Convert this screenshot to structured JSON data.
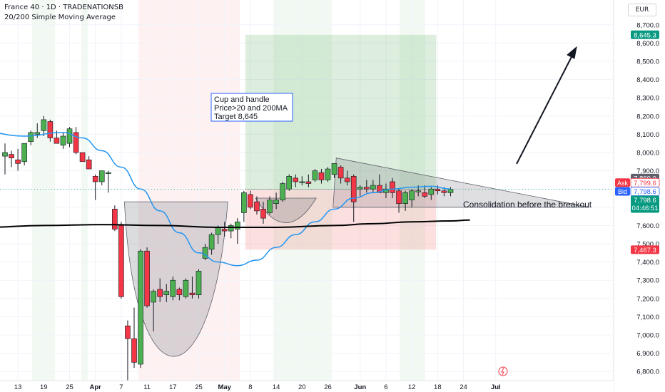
{
  "header": {
    "title": "France 40 · 1D · TRADENATIONSB",
    "indicator": "20/200 Simple Moving Average",
    "currency": "EUR"
  },
  "colors": {
    "up": "#4caf50",
    "down": "#f23645",
    "ma20": "#2196f3",
    "ma200": "#000000",
    "price_line": "#26a69a",
    "target_box": "#43a047",
    "stop_box": "#ef5350"
  },
  "chart_data": {
    "type": "candlestick",
    "y_axis": {
      "min": 6750,
      "max": 8750,
      "ticks": [
        6800,
        6900,
        7000,
        7100,
        7200,
        7300,
        7400,
        7500,
        7600,
        7700,
        7800,
        7900,
        8000,
        8100,
        8200,
        8300,
        8400,
        8500,
        8600,
        8700
      ],
      "tick_labels": [
        "6,800.0",
        "6,900.0",
        "7,000.0",
        "7,100.0",
        "7,200.0",
        "7,300.0",
        "7,400.0",
        "7,500.0",
        "7,600.0",
        "7,700.0",
        "7,800.0",
        "7,900.0",
        "8,000.0",
        "8,100.0",
        "8,200.0",
        "8,300.0",
        "8,400.0",
        "8,500.0",
        "8,600.0",
        "8,700.0"
      ]
    },
    "x_axis": {
      "labels": [
        {
          "idx": 2,
          "text": "13"
        },
        {
          "idx": 6,
          "text": "19"
        },
        {
          "idx": 10,
          "text": "25"
        },
        {
          "idx": 14,
          "text": "Apr"
        },
        {
          "idx": 18,
          "text": "7"
        },
        {
          "idx": 22,
          "text": "11"
        },
        {
          "idx": 26,
          "text": "17"
        },
        {
          "idx": 30,
          "text": "25"
        },
        {
          "idx": 34,
          "text": "May"
        },
        {
          "idx": 38,
          "text": "8"
        },
        {
          "idx": 42,
          "text": "14"
        },
        {
          "idx": 46,
          "text": "20"
        },
        {
          "idx": 50,
          "text": "26"
        },
        {
          "idx": 55,
          "text": "Jun"
        },
        {
          "idx": 59,
          "text": "6"
        },
        {
          "idx": 63,
          "text": "12"
        },
        {
          "idx": 67,
          "text": "18"
        },
        {
          "idx": 71,
          "text": "24"
        },
        {
          "idx": 76,
          "text": "Jul"
        }
      ]
    },
    "candles": [
      {
        "o": 7980,
        "h": 8050,
        "l": 7880,
        "c": 8000
      },
      {
        "o": 7990,
        "h": 8010,
        "l": 7920,
        "c": 7970
      },
      {
        "o": 7960,
        "h": 8020,
        "l": 7900,
        "c": 7940
      },
      {
        "o": 7950,
        "h": 8030,
        "l": 7930,
        "c": 8050
      },
      {
        "o": 8060,
        "h": 8120,
        "l": 8040,
        "c": 8110
      },
      {
        "o": 8100,
        "h": 8160,
        "l": 8080,
        "c": 8110
      },
      {
        "o": 8120,
        "h": 8200,
        "l": 8090,
        "c": 8180
      },
      {
        "o": 8170,
        "h": 8180,
        "l": 8060,
        "c": 8080
      },
      {
        "o": 8080,
        "h": 8120,
        "l": 8050,
        "c": 8050
      },
      {
        "o": 8040,
        "h": 8110,
        "l": 8020,
        "c": 8090
      },
      {
        "o": 8050,
        "h": 8140,
        "l": 8030,
        "c": 8130
      },
      {
        "o": 8110,
        "h": 8140,
        "l": 7990,
        "c": 8000
      },
      {
        "o": 8000,
        "h": 8000,
        "l": 7950,
        "c": 7950
      },
      {
        "o": 7960,
        "h": 7980,
        "l": 7910,
        "c": 7910
      },
      {
        "o": 7870,
        "h": 7880,
        "l": 7740,
        "c": 7840
      },
      {
        "o": 7840,
        "h": 7900,
        "l": 7820,
        "c": 7900
      },
      {
        "o": 7890,
        "h": 7900,
        "l": 7780,
        "c": 7890
      },
      {
        "o": 7690,
        "h": 7710,
        "l": 7570,
        "c": 7580
      },
      {
        "o": 7600,
        "h": 7620,
        "l": 7200,
        "c": 7210
      },
      {
        "o": 7050,
        "h": 7080,
        "l": 6750,
        "c": 6980
      },
      {
        "o": 6980,
        "h": 7150,
        "l": 6820,
        "c": 6850
      },
      {
        "o": 6840,
        "h": 7470,
        "l": 6820,
        "c": 7460
      },
      {
        "o": 7460,
        "h": 7480,
        "l": 7150,
        "c": 7160
      },
      {
        "o": 7180,
        "h": 7250,
        "l": 7020,
        "c": 7240
      },
      {
        "o": 7250,
        "h": 7310,
        "l": 7180,
        "c": 7210
      },
      {
        "o": 7220,
        "h": 7280,
        "l": 7180,
        "c": 7240
      },
      {
        "o": 7210,
        "h": 7320,
        "l": 7190,
        "c": 7300
      },
      {
        "o": 7250,
        "h": 7260,
        "l": 7190,
        "c": 7220
      },
      {
        "o": 7210,
        "h": 7310,
        "l": 7200,
        "c": 7300
      },
      {
        "o": 7230,
        "h": 7320,
        "l": 7200,
        "c": 7220
      },
      {
        "o": 7220,
        "h": 7360,
        "l": 7200,
        "c": 7350
      },
      {
        "o": 7420,
        "h": 7500,
        "l": 7410,
        "c": 7480
      },
      {
        "o": 7470,
        "h": 7560,
        "l": 7440,
        "c": 7550
      },
      {
        "o": 7550,
        "h": 7600,
        "l": 7500,
        "c": 7590
      },
      {
        "o": 7580,
        "h": 7620,
        "l": 7540,
        "c": 7570
      },
      {
        "o": 7570,
        "h": 7610,
        "l": 7530,
        "c": 7600
      },
      {
        "o": 7580,
        "h": 7640,
        "l": 7500,
        "c": 7620
      },
      {
        "o": 7670,
        "h": 7790,
        "l": 7620,
        "c": 7780
      },
      {
        "o": 7770,
        "h": 7790,
        "l": 7690,
        "c": 7700
      },
      {
        "o": 7730,
        "h": 7760,
        "l": 7660,
        "c": 7680
      },
      {
        "o": 7690,
        "h": 7730,
        "l": 7610,
        "c": 7640
      },
      {
        "o": 7670,
        "h": 7760,
        "l": 7660,
        "c": 7740
      },
      {
        "o": 7720,
        "h": 7780,
        "l": 7690,
        "c": 7740
      },
      {
        "o": 7740,
        "h": 7840,
        "l": 7730,
        "c": 7830
      },
      {
        "o": 7800,
        "h": 7880,
        "l": 7790,
        "c": 7870
      },
      {
        "o": 7860,
        "h": 7880,
        "l": 7810,
        "c": 7840
      },
      {
        "o": 7840,
        "h": 7870,
        "l": 7820,
        "c": 7840
      },
      {
        "o": 7840,
        "h": 7880,
        "l": 7810,
        "c": 7830
      },
      {
        "o": 7850,
        "h": 7910,
        "l": 7840,
        "c": 7900
      },
      {
        "o": 7890,
        "h": 7910,
        "l": 7830,
        "c": 7850
      },
      {
        "o": 7850,
        "h": 7920,
        "l": 7840,
        "c": 7910
      },
      {
        "o": 7880,
        "h": 7940,
        "l": 7860,
        "c": 7940
      },
      {
        "o": 7920,
        "h": 7930,
        "l": 7830,
        "c": 7860
      },
      {
        "o": 7860,
        "h": 7900,
        "l": 7820,
        "c": 7840
      },
      {
        "o": 7870,
        "h": 7880,
        "l": 7620,
        "c": 7730
      },
      {
        "o": 7800,
        "h": 7820,
        "l": 7760,
        "c": 7810
      },
      {
        "o": 7810,
        "h": 7850,
        "l": 7780,
        "c": 7800
      },
      {
        "o": 7800,
        "h": 7850,
        "l": 7780,
        "c": 7820
      },
      {
        "o": 7820,
        "h": 7880,
        "l": 7790,
        "c": 7780
      },
      {
        "o": 7780,
        "h": 7830,
        "l": 7750,
        "c": 7800
      },
      {
        "o": 7840,
        "h": 7860,
        "l": 7750,
        "c": 7780
      },
      {
        "o": 7790,
        "h": 7800,
        "l": 7670,
        "c": 7720
      },
      {
        "o": 7720,
        "h": 7790,
        "l": 7680,
        "c": 7780
      },
      {
        "o": 7740,
        "h": 7800,
        "l": 7700,
        "c": 7790
      },
      {
        "o": 7790,
        "h": 7820,
        "l": 7760,
        "c": 7790
      },
      {
        "o": 7780,
        "h": 7820,
        "l": 7750,
        "c": 7760
      },
      {
        "o": 7770,
        "h": 7810,
        "l": 7740,
        "c": 7800
      },
      {
        "o": 7800,
        "h": 7820,
        "l": 7770,
        "c": 7790
      },
      {
        "o": 7790,
        "h": 7810,
        "l": 7760,
        "c": 7780
      },
      {
        "o": 7780,
        "h": 7810,
        "l": 7760,
        "c": 7798.6
      }
    ],
    "ma20": [
      [
        -3,
        8110
      ],
      [
        3,
        8090
      ],
      [
        9,
        8110
      ],
      [
        12,
        8080
      ],
      [
        15,
        8010
      ],
      [
        18,
        7920
      ],
      [
        21,
        7800
      ],
      [
        24,
        7680
      ],
      [
        27,
        7560
      ],
      [
        30,
        7450
      ],
      [
        33,
        7400
      ],
      [
        36,
        7380
      ],
      [
        39,
        7410
      ],
      [
        42,
        7480
      ],
      [
        45,
        7550
      ],
      [
        48,
        7620
      ],
      [
        51,
        7690
      ],
      [
        54,
        7750
      ],
      [
        57,
        7780
      ],
      [
        60,
        7800
      ],
      [
        63,
        7810
      ],
      [
        66,
        7815
      ],
      [
        69,
        7800
      ]
    ],
    "ma200": [
      [
        -3,
        7590
      ],
      [
        6,
        7600
      ],
      [
        15,
        7605
      ],
      [
        24,
        7600
      ],
      [
        33,
        7590
      ],
      [
        42,
        7590
      ],
      [
        51,
        7600
      ],
      [
        57,
        7610
      ],
      [
        63,
        7620
      ],
      [
        69,
        7625
      ],
      [
        72,
        7630
      ]
    ],
    "annotations": {
      "cup_handle_label": [
        "Cup and handle",
        "Price>20 and 200MA",
        "Target 8,645"
      ],
      "consolidation_label": "Consolidation before the breakout"
    },
    "position": {
      "entry": 7798.6,
      "target": 8645.3,
      "stop": 7467.3,
      "start_idx": 37,
      "end_idx": 67
    },
    "price_labels": {
      "target": "8,645.3",
      "high": "7,860.0",
      "ask_label": "Ask",
      "ask": "7,799.6",
      "bid_label": "Bid",
      "bid": "7,798.6",
      "last": "7,798.6",
      "countdown": "04:46:51",
      "stop": "7,467.3"
    }
  }
}
